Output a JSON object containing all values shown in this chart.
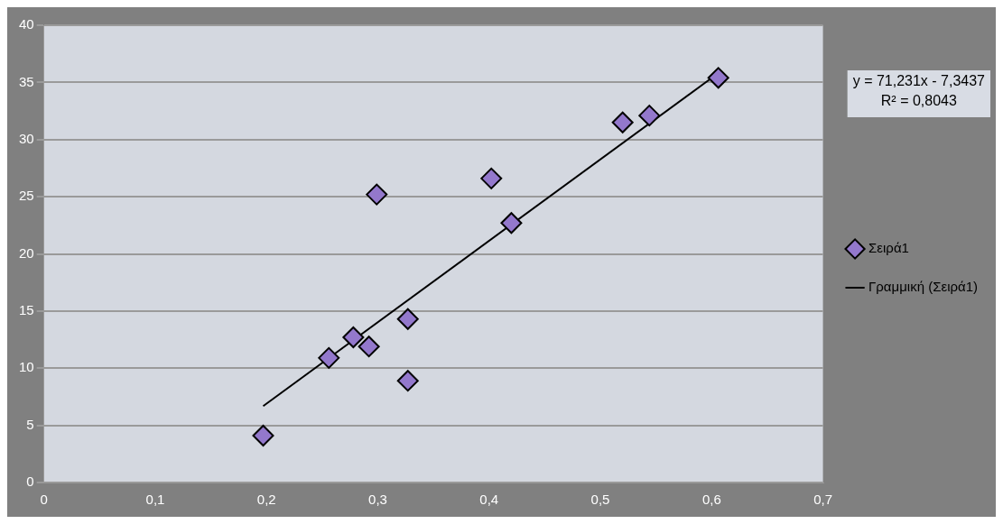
{
  "chart_data": {
    "type": "scatter",
    "xlim": [
      0,
      0.7
    ],
    "xticks": [
      0,
      {
        "value": 0.1,
        "label": "0,1"
      },
      {
        "value": 0.2,
        "label": "0,2"
      },
      {
        "value": 0.3,
        "label": "0,3"
      },
      {
        "value": 0.4,
        "label": "0,4"
      },
      {
        "value": 0.5,
        "label": "0,5"
      },
      {
        "value": 0.6,
        "label": "0,6"
      },
      {
        "value": 0.7,
        "label": "0,7"
      }
    ],
    "ylim": [
      0,
      40
    ],
    "yticks": [
      0,
      5,
      10,
      15,
      20,
      25,
      30,
      35,
      40
    ],
    "grid": "y",
    "legend": "right",
    "marker": "diamond",
    "series": [
      {
        "name": "Σειρά1",
        "color": "#9378cc",
        "x": [
          0.197,
          0.256,
          0.278,
          0.292,
          0.327,
          0.327,
          0.402,
          0.42,
          0.299,
          0.52,
          0.544,
          0.606
        ],
        "values": [
          4.1,
          10.9,
          12.7,
          11.9,
          14.3,
          8.9,
          26.6,
          22.7,
          25.2,
          31.5,
          32.1,
          35.4
        ]
      },
      {
        "name": "Γραμμική (Σειρά1)",
        "type": "line",
        "color": "#000000",
        "marker": "none",
        "line_style": "solid",
        "x": [
          0.197,
          0.606
        ],
        "values": [
          6.69,
          35.82
        ]
      }
    ],
    "annotations": [
      "y = 71,231x - 7,3437\nR² = 0,8043"
    ]
  }
}
